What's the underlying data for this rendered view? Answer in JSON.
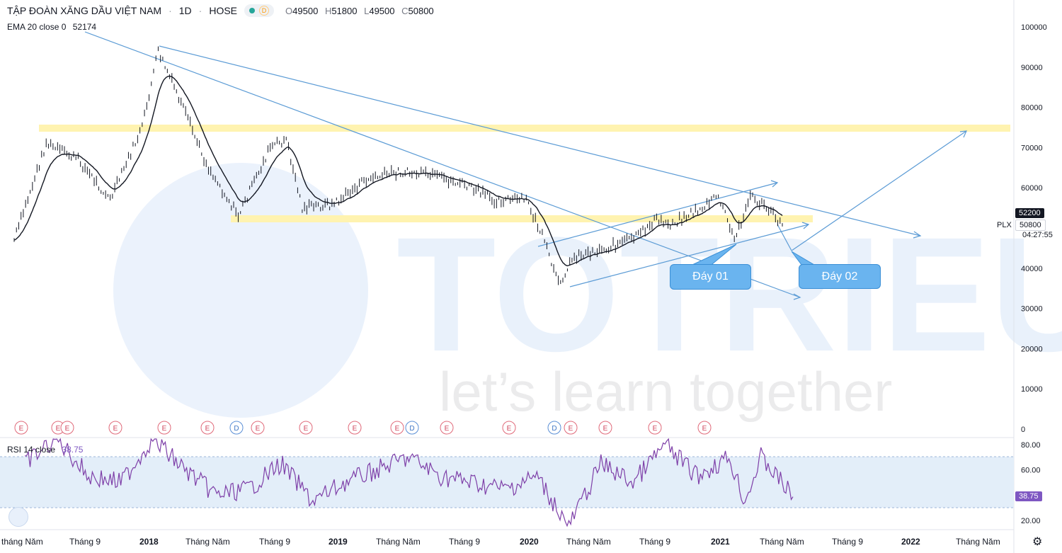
{
  "header": {
    "title": "TẬP ĐOÀN XĂNG DẦU VIỆT NAM",
    "interval": "1D",
    "exchange": "HOSE",
    "mode_badge": "D",
    "ohlc": {
      "o_label": "O",
      "o": "49500",
      "h_label": "H",
      "h": "51800",
      "l_label": "L",
      "l": "49500",
      "c_label": "C",
      "c": "50800"
    }
  },
  "ema": {
    "label": "EMA 20 close 0",
    "value": "52174"
  },
  "rsi": {
    "label": "RSI 14 close",
    "value": "38.75"
  },
  "price_scale": {
    "ticks": [
      "100000",
      "90000",
      "80000",
      "70000",
      "60000",
      "50000",
      "40000",
      "30000",
      "20000",
      "10000",
      "0"
    ],
    "ema_tag": "52200",
    "last_price_tag": "50800",
    "ticker": "PLX",
    "countdown": "04:27:55",
    "colors": {
      "ema_tag": "#131722",
      "last_price_tag": "#ffffff"
    }
  },
  "rsi_scale": {
    "ticks": [
      "80.00",
      "60.00",
      "40.00",
      "20.00"
    ],
    "value_tag": "38.75"
  },
  "time_axis": [
    "tháng Năm",
    "Tháng 9",
    "2018",
    "Tháng Năm",
    "Tháng 9",
    "2019",
    "Tháng Năm",
    "Tháng 9",
    "2020",
    "Tháng Năm",
    "Tháng 9",
    "2021",
    "Tháng Năm",
    "Tháng 9",
    "2022",
    "Tháng Năm"
  ],
  "events": [
    "E",
    "E",
    "E",
    "E",
    "E",
    "E",
    "D",
    "E",
    "E",
    "E",
    "E",
    "D",
    "E",
    "E",
    "D",
    "E",
    "E",
    "E",
    "E"
  ],
  "callouts": {
    "first": "Đáy 01",
    "second": "Đáy 02"
  },
  "watermark": {
    "brand": "TOTRIEU",
    "tagline": "let’s learn together"
  },
  "colors": {
    "trendline": "#5b9bd5",
    "zone": "#fff3b0",
    "rsi_line": "#7e3fa8",
    "rsi_band": "#e3eef9",
    "candle": "#131722",
    "ema_line": "#131722",
    "callout": "#6ab4ef"
  },
  "chart_data": {
    "type": "line",
    "title": "TẬP ĐOÀN XĂNG DẦU VIỆT NAM",
    "xlabel": "",
    "ylabel": "",
    "ylim": [
      0,
      100000
    ],
    "grid": false,
    "series": [
      {
        "name": "",
        "x": [
          "2017-05",
          "2017-07",
          "2017-09",
          "2017-11",
          "2018-01",
          "2018-02",
          "2018-03",
          "2018-05",
          "2018-07",
          "2018-09",
          "2018-10",
          "2018-11",
          "2019-01",
          "2019-03",
          "2019-05",
          "2019-07",
          "2019-09",
          "2019-11",
          "2020-01",
          "2020-02",
          "2020-03",
          "2020-04",
          "2020-06",
          "2020-08",
          "2020-09",
          "2020-10",
          "2020-12",
          "2021-01",
          "2021-02",
          "2021-03",
          "2021-04",
          "2021-05"
        ],
        "values": [
          47000,
          71000,
          67000,
          57000,
          75000,
          94000,
          85000,
          66000,
          53000,
          70000,
          72000,
          55000,
          56000,
          62000,
          64000,
          63000,
          61000,
          57000,
          57000,
          48000,
          36000,
          43000,
          45000,
          48000,
          52000,
          51000,
          55000,
          58000,
          47000,
          58000,
          55000,
          50800
        ]
      }
    ],
    "rsi": {
      "x": [
        "2017-05",
        "2017-07",
        "2017-09",
        "2017-11",
        "2018-01",
        "2018-03",
        "2018-05",
        "2018-07",
        "2018-09",
        "2018-11",
        "2019-01",
        "2019-03",
        "2019-05",
        "2019-07",
        "2019-09",
        "2019-11",
        "2020-01",
        "2020-03",
        "2020-05",
        "2020-07",
        "2020-09",
        "2020-11",
        "2021-01",
        "2021-02",
        "2021-03",
        "2021-04",
        "2021-05"
      ],
      "values": [
        65,
        85,
        55,
        50,
        85,
        60,
        40,
        45,
        65,
        35,
        50,
        60,
        70,
        55,
        50,
        45,
        55,
        15,
        65,
        50,
        80,
        55,
        70,
        35,
        70,
        55,
        38.75
      ],
      "ylim": [
        10,
        85
      ],
      "band": [
        30,
        70
      ]
    }
  }
}
